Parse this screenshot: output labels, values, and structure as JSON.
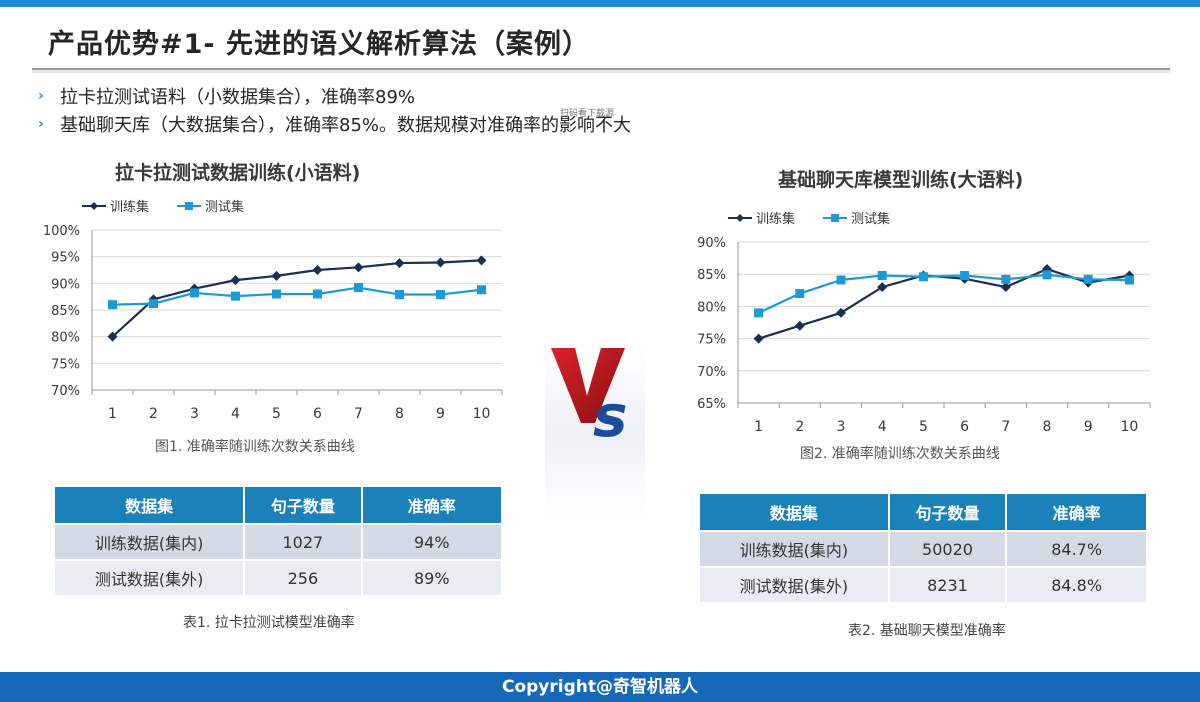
{
  "slide": {
    "title": "产品优势#1- 先进的语义解析算法（案例）",
    "bullets": [
      "拉卡拉测试语料（小数据集合），准确率89%",
      "基础聊天库（大数据集合），准确率85%。数据规模对准确率的影响不大"
    ],
    "tiny_note": "扫码看下载源",
    "footer": "Copyright@奇智机器人",
    "colors": {
      "accent": "#1f8ed3",
      "train": "#1b2f52",
      "test": "#1a9bd7",
      "table_header": "#1a82b9"
    }
  },
  "chart_data": [
    {
      "type": "line",
      "title": "拉卡拉测试数据训练(小语料)",
      "caption": "图1. 准确率随训练次数关系曲线",
      "x": [
        1,
        2,
        3,
        4,
        5,
        6,
        7,
        8,
        9,
        10
      ],
      "series": [
        {
          "name": "训练集",
          "values": [
            80,
            87,
            89,
            90.6,
            91.4,
            92.5,
            93,
            93.8,
            93.9,
            94.3
          ]
        },
        {
          "name": "测试集",
          "values": [
            86,
            86.2,
            88.2,
            87.6,
            88,
            88,
            89.2,
            87.9,
            87.9,
            88.8
          ]
        }
      ],
      "ylim": [
        70,
        100
      ],
      "yticks": [
        "70%",
        "75%",
        "80%",
        "85%",
        "90%",
        "95%",
        "100%"
      ],
      "grid": true,
      "legend": "top-left"
    },
    {
      "type": "line",
      "title": "基础聊天库模型训练(大语料)",
      "caption": "图2. 准确率随训练次数关系曲线",
      "x": [
        1,
        2,
        3,
        4,
        5,
        6,
        7,
        8,
        9,
        10
      ],
      "series": [
        {
          "name": "训练集",
          "values": [
            75,
            77,
            79,
            83,
            84.8,
            84.3,
            83,
            85.8,
            83.7,
            84.8
          ]
        },
        {
          "name": "测试集",
          "values": [
            79,
            82,
            84.1,
            84.8,
            84.6,
            84.8,
            84.2,
            84.9,
            84.2,
            84.1
          ]
        }
      ],
      "ylim": [
        65,
        90
      ],
      "yticks": [
        "65%",
        "70%",
        "75%",
        "80%",
        "85%",
        "90%"
      ],
      "grid": true,
      "legend": "top-left"
    }
  ],
  "tables": [
    {
      "caption": "表1. 拉卡拉测试模型准确率",
      "headers": [
        "数据集",
        "句子数量",
        "准确率"
      ],
      "rows": [
        [
          "训练数据(集内)",
          "1027",
          "94%"
        ],
        [
          "测试数据(集外)",
          "256",
          "89%"
        ]
      ]
    },
    {
      "caption": "表2. 基础聊天模型准确率",
      "headers": [
        "数据集",
        "句子数量",
        "准确率"
      ],
      "rows": [
        [
          "训练数据(集内)",
          "50020",
          "84.7%"
        ],
        [
          "测试数据(集外)",
          "8231",
          "84.8%"
        ]
      ]
    }
  ]
}
